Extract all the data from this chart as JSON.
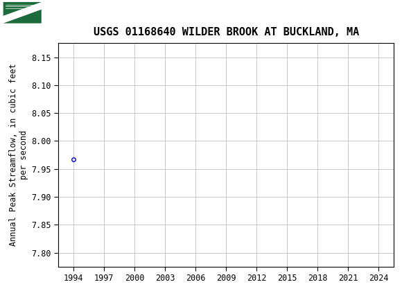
{
  "title": "USGS 01168640 WILDER BROOK AT BUCKLAND, MA",
  "ylabel": "Annual Peak Streamflow, in cubic feet\nper second",
  "xlabel": "",
  "data_x": [
    1994
  ],
  "data_y": [
    7.967
  ],
  "marker": "o",
  "marker_color": "none",
  "marker_edge_color": "#0000cc",
  "marker_size": 4,
  "marker_linewidth": 1.0,
  "xlim": [
    1992.5,
    2025.5
  ],
  "ylim": [
    7.775,
    8.175
  ],
  "xticks": [
    1994,
    1997,
    2000,
    2003,
    2006,
    2009,
    2012,
    2015,
    2018,
    2021,
    2024
  ],
  "yticks": [
    7.8,
    7.85,
    7.9,
    7.95,
    8.0,
    8.05,
    8.1,
    8.15
  ],
  "grid_color": "#c8c8c8",
  "grid_linewidth": 0.7,
  "plot_bg_color": "#ffffff",
  "fig_bg_color": "#ffffff",
  "header_bg_color": "#1c6b3a",
  "title_fontsize": 11,
  "axis_label_fontsize": 8.5,
  "tick_fontsize": 8.5,
  "header_text_color": "#ffffff",
  "header_usgs_fontsize": 14
}
